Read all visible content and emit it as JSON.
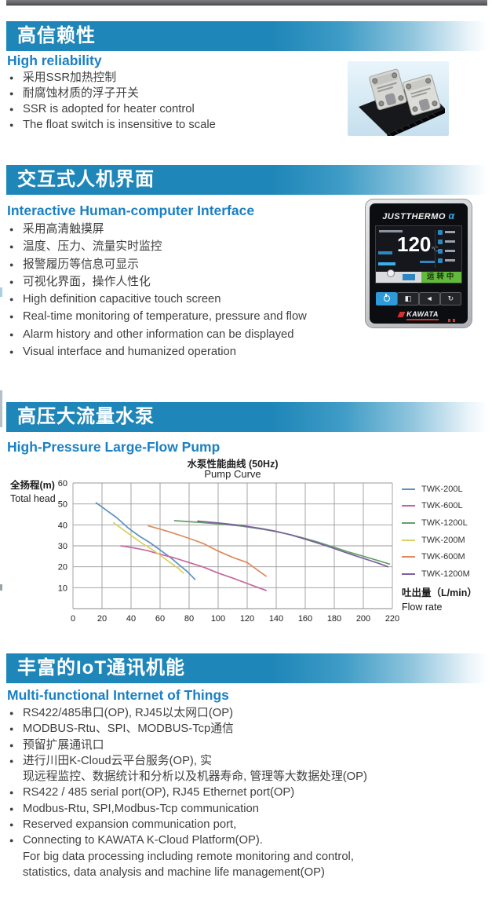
{
  "sections": [
    {
      "title_zh": "高信赖性",
      "title_en": "High reliability",
      "bullets": [
        "采用SSR加热控制",
        "耐腐蚀材质的浮子开关",
        "SSR is adopted for heater control",
        "The float switch is insensitive to scale"
      ]
    },
    {
      "title_zh": "交互式人机界面",
      "title_en": "Interactive Human-computer Interface",
      "bullets": [
        "采用高清触摸屏",
        "温度、压力、流量实时监控",
        "报警履历等信息可显示",
        "可视化界面，操作人性化",
        "High definition capacitive touch screen",
        "Real-time monitoring of temperature, pressure and flow",
        "Alarm history and other information can be displayed",
        "Visual interface and humanized operation"
      ]
    },
    {
      "title_zh": "高压大流量水泵",
      "title_en": "High-Pressure Large-Flow Pump",
      "bullets": []
    },
    {
      "title_zh": "丰富的IoT通讯机能",
      "title_en": "Multi-functional Internet of Things",
      "bullets": [
        "RS422/485串口(OP), RJ45以太网口(OP)",
        "MODBUS-Rtu、SPI、MODBUS-Tcp通信",
        "预留扩展通讯口",
        "进行川田K-Cloud云平台服务(OP), 实",
        {
          "text": "现远程监控、数据统计和分析以及机器寿命, 管理等大数据处理(OP)",
          "indent": true
        },
        "RS422 / 485 serial port(OP), RJ45 Ethernet port(OP)",
        "Modbus-Rtu, SPI,Modbus-Tcp communication",
        "Reserved expansion communication port,",
        "Connecting to KAWATA K-Cloud Platform(OP).",
        {
          "text": "For big data processing including remote monitoring and control,",
          "indent": true
        },
        {
          "text": "statistics, data analysis and machine life management(OP)",
          "indent": true
        }
      ]
    }
  ],
  "device": {
    "brand": "JUSTTHERMO",
    "brand_suffix": "α",
    "temp_value": "120",
    "temp_unit": "℃",
    "status_label": "运转中",
    "logo_text": "KAWATA"
  },
  "chart_data": {
    "type": "line",
    "title_zh": "水泵性能曲线 (50Hz)",
    "title_en": "Pump Curve",
    "ylabel_zh": "全扬程(m)",
    "ylabel_en": "Total head",
    "xlabel_zh": "吐出量（L/min）",
    "xlabel_en": "Flow rate",
    "xlim": [
      0,
      220
    ],
    "ylim": [
      0,
      60
    ],
    "xticks": [
      0,
      20,
      40,
      60,
      80,
      100,
      120,
      140,
      160,
      180,
      200,
      220
    ],
    "yticks": [
      10,
      20,
      30,
      40,
      50,
      60
    ],
    "grid": true,
    "legend_position": "right",
    "series": [
      {
        "name": "TWK-200L",
        "color": "#5b92c0",
        "points": [
          [
            16,
            50.5
          ],
          [
            22,
            47.5
          ],
          [
            30,
            43.5
          ],
          [
            38,
            38.5
          ],
          [
            46,
            34.5
          ],
          [
            53,
            31.5
          ],
          [
            60,
            28
          ],
          [
            67,
            24.5
          ],
          [
            73,
            21
          ],
          [
            79,
            17.5
          ],
          [
            84,
            14
          ]
        ]
      },
      {
        "name": "TWK-600L",
        "color": "#c4679f",
        "points": [
          [
            33,
            30
          ],
          [
            42,
            29
          ],
          [
            51,
            27.8
          ],
          [
            60,
            26
          ],
          [
            70,
            24.2
          ],
          [
            80,
            22
          ],
          [
            90,
            19.8
          ],
          [
            100,
            17
          ],
          [
            110,
            14.6
          ],
          [
            120,
            12
          ],
          [
            127,
            10.2
          ],
          [
            133,
            8.7
          ]
        ]
      },
      {
        "name": "TWK-1200L",
        "color": "#63a066",
        "points": [
          [
            70,
            42
          ],
          [
            85,
            41.3
          ],
          [
            100,
            40.5
          ],
          [
            115,
            39.5
          ],
          [
            130,
            38
          ],
          [
            140,
            36.8
          ],
          [
            150,
            35.3
          ],
          [
            160,
            33.5
          ],
          [
            170,
            31.5
          ],
          [
            180,
            29.3
          ],
          [
            190,
            27
          ],
          [
            200,
            25
          ],
          [
            210,
            23
          ],
          [
            218,
            21.3
          ]
        ]
      },
      {
        "name": "TWK-200M",
        "color": "#ddcf63",
        "points": [
          [
            28,
            41
          ],
          [
            34,
            38
          ],
          [
            41,
            34.5
          ],
          [
            48,
            31
          ],
          [
            55,
            28
          ],
          [
            62,
            24.5
          ],
          [
            68,
            21.5
          ],
          [
            73,
            19
          ],
          [
            76,
            17
          ]
        ]
      },
      {
        "name": "TWK-600M",
        "color": "#dd8a5c",
        "points": [
          [
            52,
            39.5
          ],
          [
            60,
            38
          ],
          [
            68,
            36.3
          ],
          [
            76,
            34.5
          ],
          [
            83,
            32.8
          ],
          [
            90,
            31
          ],
          [
            100,
            27.5
          ],
          [
            110,
            24.5
          ],
          [
            120,
            22
          ],
          [
            127,
            18.5
          ],
          [
            133,
            15.5
          ]
        ]
      },
      {
        "name": "TWK-1200M",
        "color": "#7b5f9e",
        "points": [
          [
            86,
            41.8
          ],
          [
            100,
            40.9
          ],
          [
            115,
            39.8
          ],
          [
            130,
            38.2
          ],
          [
            140,
            36.9
          ],
          [
            150,
            35.2
          ],
          [
            160,
            33.2
          ],
          [
            170,
            31
          ],
          [
            180,
            28.7
          ],
          [
            190,
            26.3
          ],
          [
            200,
            24
          ],
          [
            210,
            21.8
          ],
          [
            217,
            20
          ]
        ]
      }
    ]
  },
  "colors": {
    "header_blue": "#1e86b8",
    "accent_blue": "#1a80c4",
    "text_dark": "#3f4040",
    "status_green": "#62b93c",
    "power_blue": "#2e9ad8",
    "logo_red": "#d6302c"
  }
}
